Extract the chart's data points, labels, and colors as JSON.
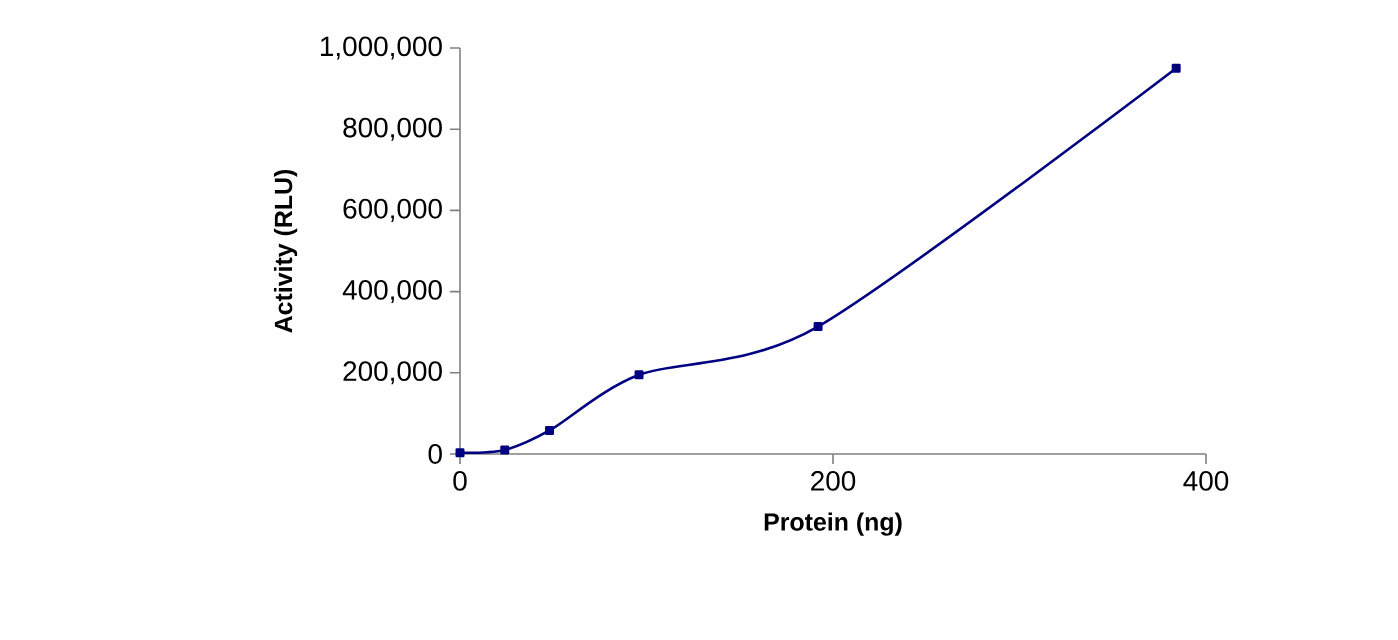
{
  "chart_data": {
    "type": "line",
    "xlabel": "Protein (ng)",
    "ylabel": "Activity (RLU)",
    "x": [
      0,
      24,
      48,
      96,
      192,
      384
    ],
    "series": [
      {
        "color": "#000080",
        "values": [
          3000,
          10000,
          58000,
          195000,
          314000,
          950000
        ]
      }
    ],
    "xlim": [
      0,
      400
    ],
    "ylim": [
      0,
      1000000
    ],
    "xticks": [
      0,
      200,
      400
    ],
    "yticks": [
      0,
      {
        "value": 200000,
        "label": "200,000"
      },
      {
        "value": 400000,
        "label": "400,000"
      },
      {
        "value": 600000,
        "label": "600,000"
      },
      {
        "value": 800000,
        "label": "800,000"
      },
      {
        "value": 1000000,
        "label": "1,000,000"
      }
    ],
    "marker": "square",
    "line_style": "solid",
    "grid": false
  }
}
